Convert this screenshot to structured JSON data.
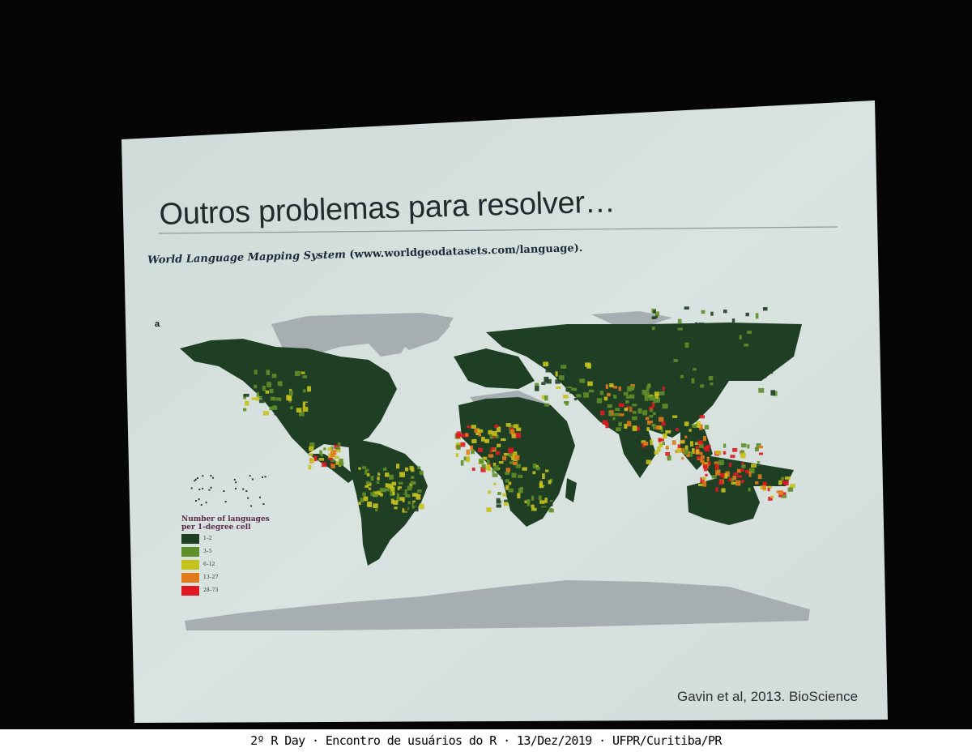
{
  "slide": {
    "title": "Outros problemas para resolver…",
    "source_title": "World Language Mapping System",
    "source_url": "(www.worldgeodatasets.com/language).",
    "panel_letter": "a",
    "citation": "Gavin et al, 2013. BioScience"
  },
  "legend": {
    "title": "Number of languages per 1-degree cell",
    "entries": [
      {
        "label": "1–2",
        "color": "#1f3f25"
      },
      {
        "label": "3–5",
        "color": "#5f8f28"
      },
      {
        "label": "6–12",
        "color": "#c6c21c"
      },
      {
        "label": "13–27",
        "color": "#e27a1a"
      },
      {
        "label": "28–73",
        "color": "#e01824"
      }
    ]
  },
  "map_colors": {
    "ocean": "#d6e0de",
    "no_data": "#a7aeb1"
  },
  "caption": "2º R Day · Encontro de usuários do R · 13/Dez/2019 · UFPR/Curitiba/PR"
}
